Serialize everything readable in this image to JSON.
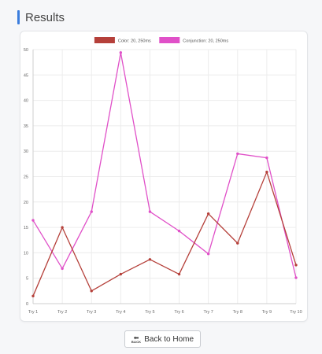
{
  "header": {
    "title": "Results",
    "accent_color": "#3b7ddd"
  },
  "footer": {
    "back_label": "Back to Home",
    "back_icon": "back-arrow-icon",
    "back_icon_text": "BACK"
  },
  "chart_data": {
    "type": "line",
    "title": "",
    "xlabel": "",
    "ylabel": "",
    "ylim": [
      0,
      50
    ],
    "yticks": [
      0,
      5,
      10,
      15,
      20,
      25,
      30,
      35,
      40,
      45,
      50
    ],
    "grid": true,
    "legend_position": "top-center",
    "categories": [
      "Try 1",
      "Try 2",
      "Try 3",
      "Try 4",
      "Try 5",
      "Try 6",
      "Try 7",
      "Try 8",
      "Try 9",
      "Try 10"
    ],
    "series": [
      {
        "name": "Color: 20, 250ms",
        "color": "#b5403a",
        "values": [
          1.5,
          15,
          2.5,
          5.8,
          8.7,
          5.8,
          17.7,
          11.9,
          25.9,
          7.6
        ]
      },
      {
        "name": "Conjunction: 20, 250ms",
        "color": "#e050c8",
        "values": [
          16.4,
          6.9,
          18.1,
          49.4,
          18.1,
          14.3,
          9.8,
          29.5,
          28.7,
          5.1
        ]
      }
    ]
  }
}
